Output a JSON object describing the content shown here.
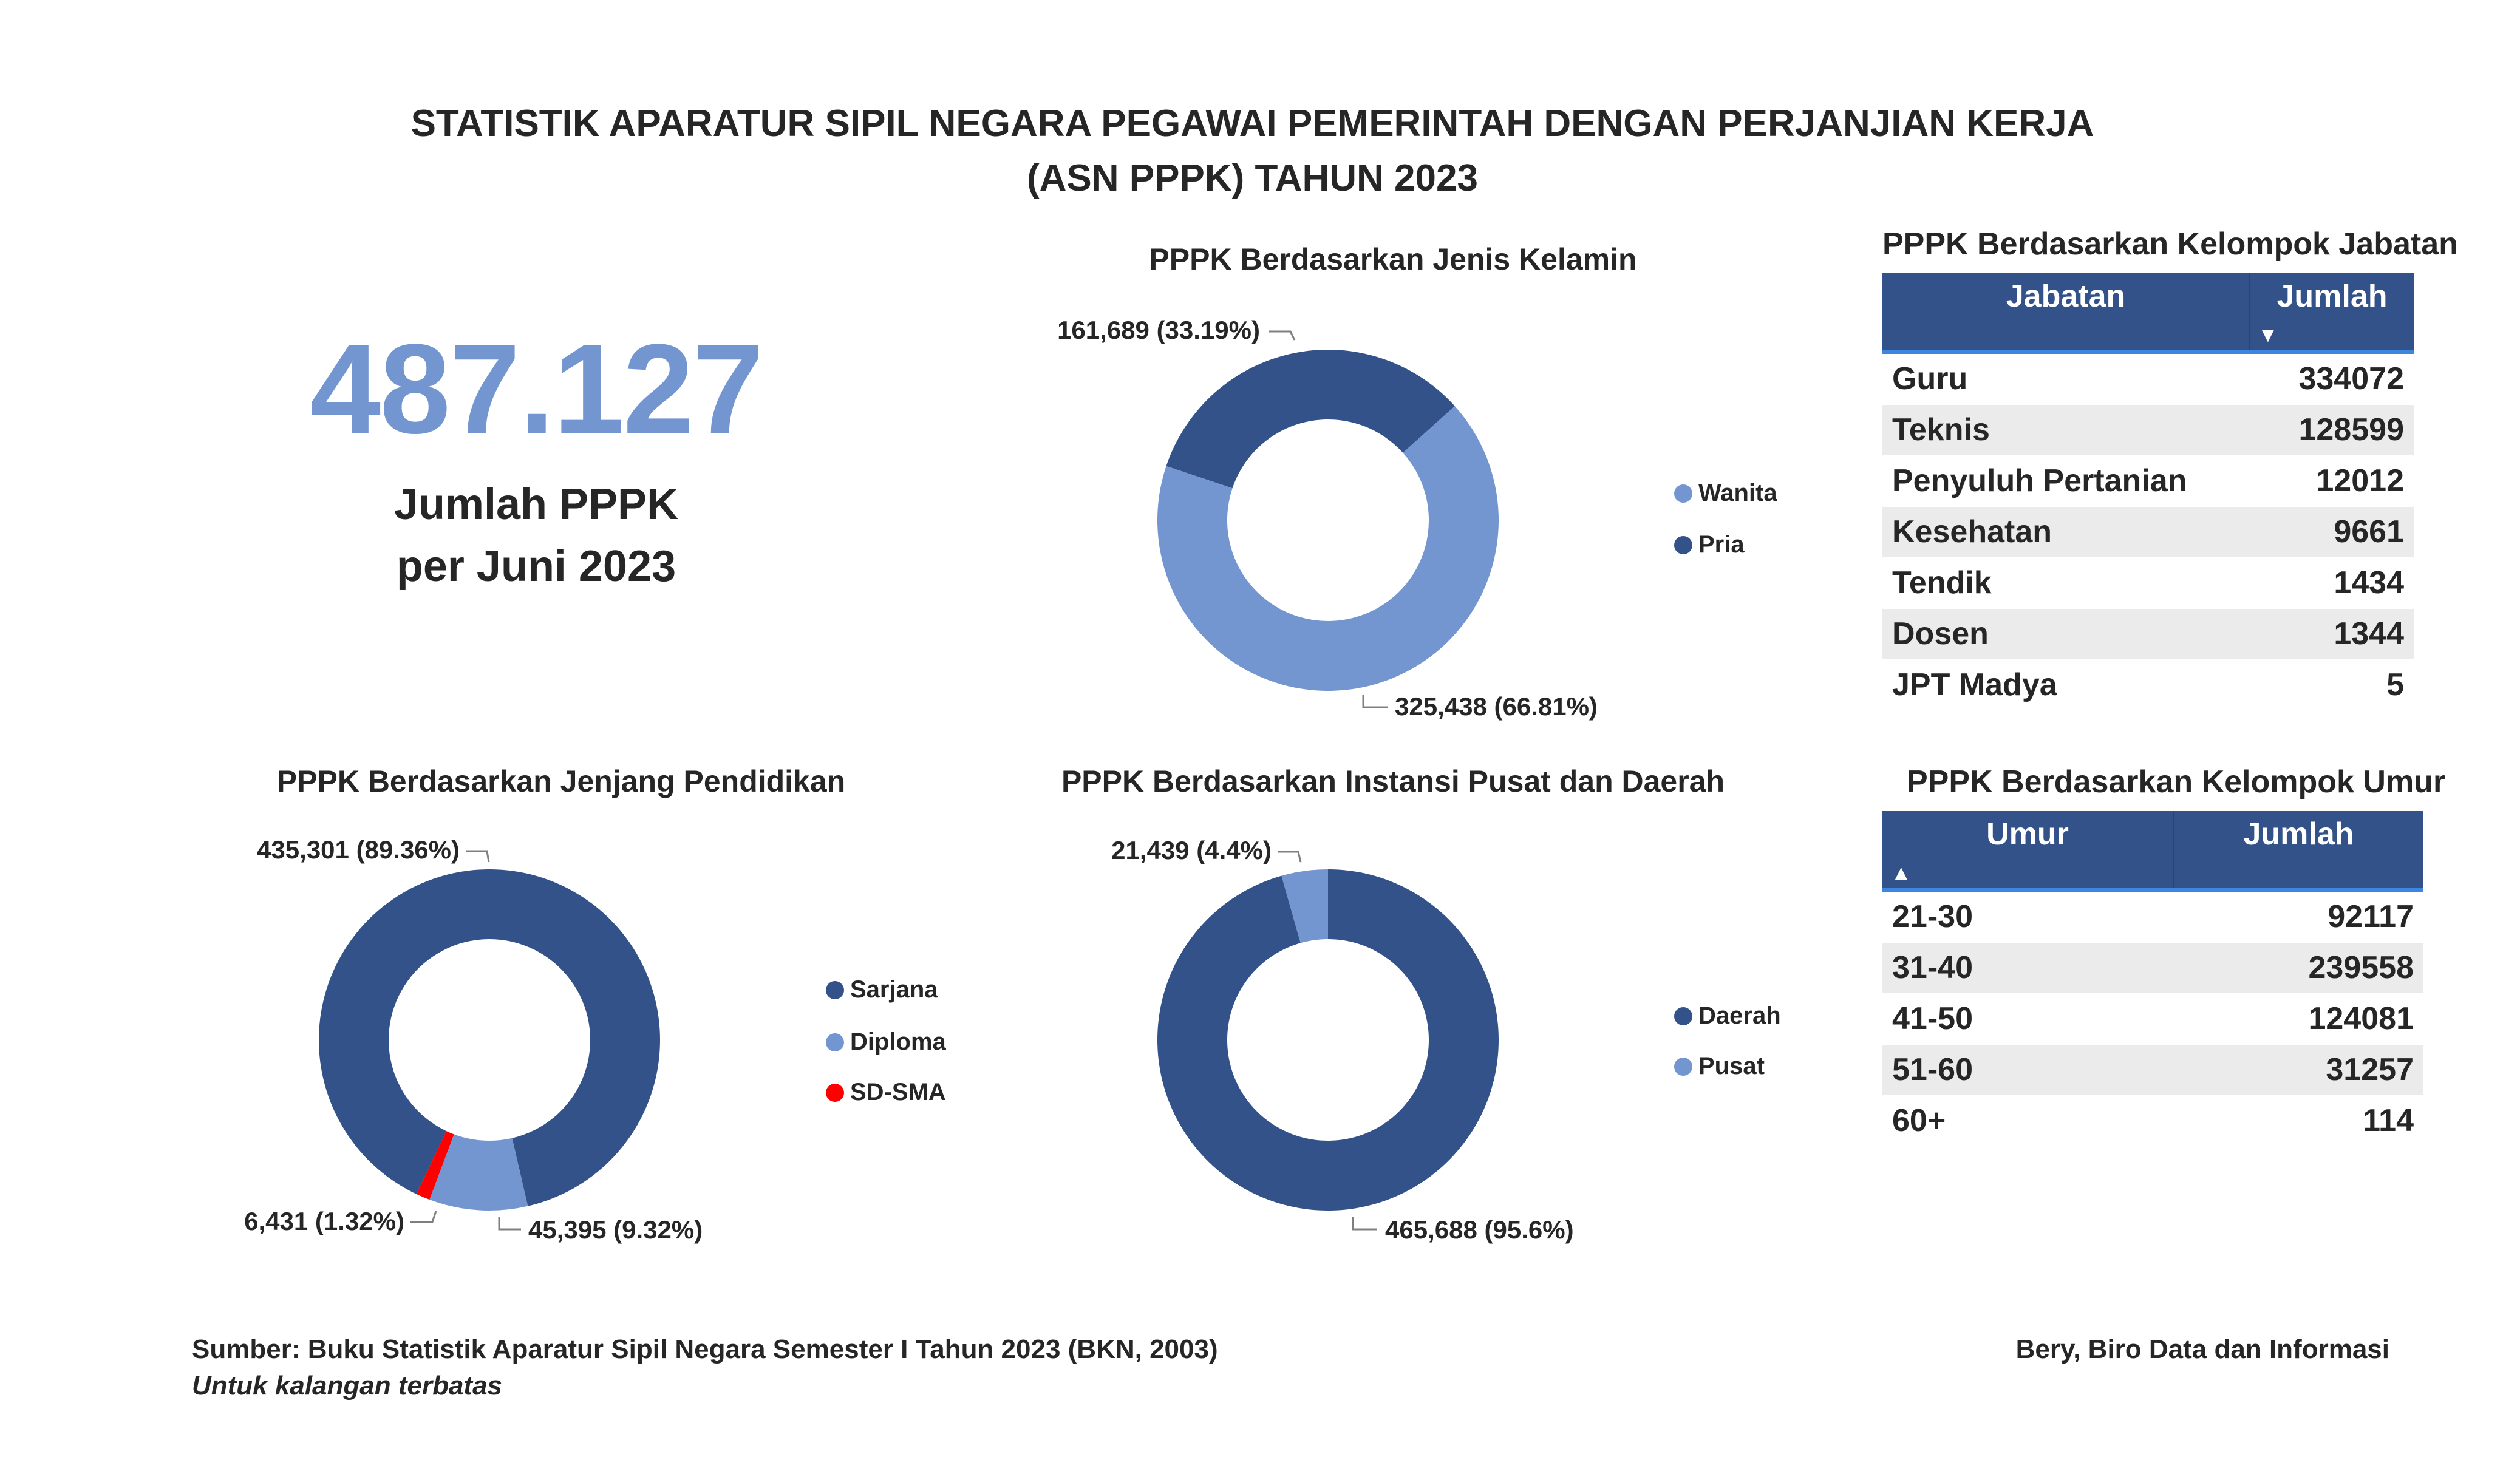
{
  "header": {
    "title_line1": "STATISTIK APARATUR SIPIL NEGARA PEGAWAI PEMERINTAH DENGAN PERJANJIAN KERJA",
    "title_line2": "(ASN PPPK) TAHUN 2023"
  },
  "kpi": {
    "value": "487.127",
    "label_line1": "Jumlah PPPK",
    "label_line2": "per Juni 2023"
  },
  "colors": {
    "dark": "#335289",
    "light": "#7396D0",
    "red": "#FF0000"
  },
  "chart_data": [
    {
      "type": "pie",
      "title": "PPPK Berdasarkan Jenis Kelamin",
      "categories": [
        "Wanita",
        "Pria"
      ],
      "values": [
        325438,
        161689
      ],
      "percent": [
        66.81,
        33.19
      ],
      "labels": [
        "325,438 (66.81%)",
        "161,689 (33.19%)"
      ],
      "legend": [
        "Wanita",
        "Pria"
      ],
      "legend_position": "right"
    },
    {
      "type": "pie",
      "title": "PPPK Berdasarkan Jenjang Pendidikan",
      "categories": [
        "Sarjana",
        "Diploma",
        "SD-SMA"
      ],
      "values": [
        435301,
        45395,
        6431
      ],
      "percent": [
        89.36,
        9.32,
        1.32
      ],
      "labels": [
        "435,301 (89.36%)",
        "45,395 (9.32%)",
        "6,431 (1.32%)"
      ],
      "legend": [
        "Sarjana",
        "Diploma",
        "SD-SMA"
      ],
      "legend_position": "right"
    },
    {
      "type": "pie",
      "title": "PPPK Berdasarkan Instansi Pusat dan Daerah",
      "categories": [
        "Daerah",
        "Pusat"
      ],
      "values": [
        465688,
        21439
      ],
      "percent": [
        95.6,
        4.4
      ],
      "labels": [
        "465,688 (95.6%)",
        "21,439 (4.4%)"
      ],
      "legend": [
        "Daerah",
        "Pusat"
      ],
      "legend_position": "right"
    },
    {
      "type": "table",
      "title": "PPPK Berdasarkan Kelompok Jabatan",
      "columns": [
        "Jabatan",
        "Jumlah"
      ],
      "rows": [
        [
          "Guru",
          "334072"
        ],
        [
          "Teknis",
          "128599"
        ],
        [
          "Penyuluh Pertanian",
          "12012"
        ],
        [
          "Kesehatan",
          "9661"
        ],
        [
          "Tendik",
          "1434"
        ],
        [
          "Dosen",
          "1344"
        ],
        [
          "JPT Madya",
          "5"
        ]
      ]
    },
    {
      "type": "table",
      "title": "PPPK Berdasarkan Kelompok Umur",
      "columns": [
        "Umur",
        "Jumlah"
      ],
      "rows": [
        [
          "21-30",
          "92117"
        ],
        [
          "31-40",
          "239558"
        ],
        [
          "41-50",
          "124081"
        ],
        [
          "51-60",
          "31257"
        ],
        [
          "60+",
          "114"
        ]
      ]
    }
  ],
  "footer": {
    "source": "Sumber:  Buku Statistik Aparatur Sipil Negara Semester I Tahun 2023 (BKN, 2003)",
    "note": "Untuk kalangan terbatas",
    "author": "Bery, Biro Data dan Informasi"
  }
}
